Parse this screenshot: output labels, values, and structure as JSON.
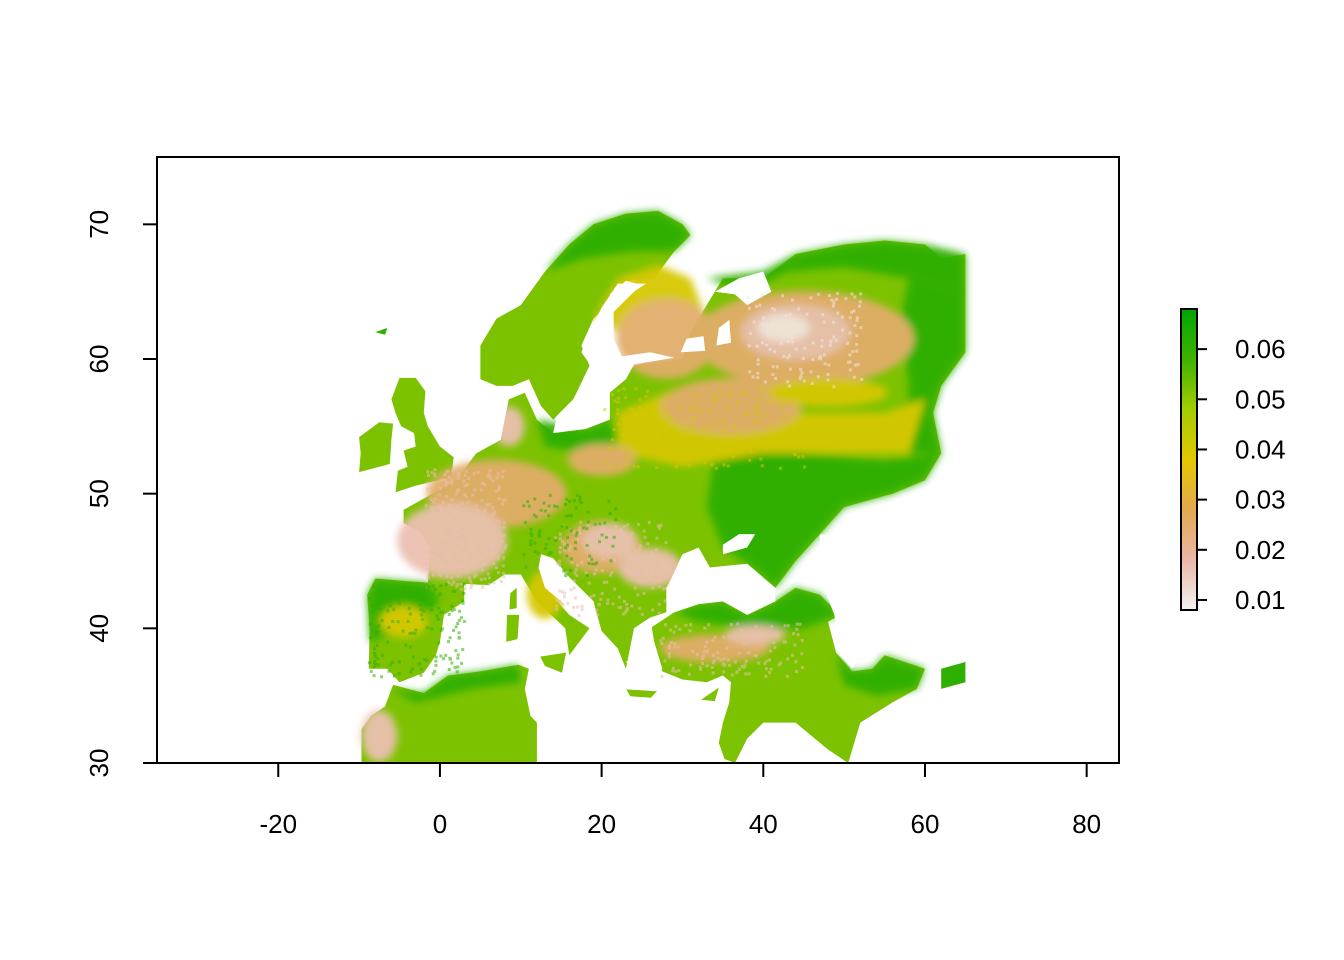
{
  "chart_data": {
    "type": "heatmap",
    "title": "",
    "xlabel": "",
    "ylabel": "",
    "xlim": [
      -35,
      84
    ],
    "ylim": [
      30,
      75
    ],
    "x_ticks": [
      -20,
      0,
      20,
      40,
      60,
      80
    ],
    "x_tick_labels": [
      "-20",
      "0",
      "20",
      "40",
      "60",
      "80"
    ],
    "y_ticks": [
      30,
      40,
      50,
      60,
      70
    ],
    "y_tick_labels": [
      "30",
      "40",
      "50",
      "60",
      "70"
    ],
    "grid": false,
    "legend": {
      "placement": "right",
      "min": 0.008,
      "max": 0.068,
      "ticks": [
        0.01,
        0.02,
        0.03,
        0.04,
        0.05,
        0.06
      ],
      "tick_labels": [
        "0.01",
        "0.02",
        "0.03",
        "0.04",
        "0.05",
        "0.06"
      ],
      "colors": [
        "#F2F2F2",
        "#EBB8A6",
        "#E3A84E",
        "#E3C800",
        "#A3CC00",
        "#3EB300",
        "#00A600"
      ]
    }
  }
}
